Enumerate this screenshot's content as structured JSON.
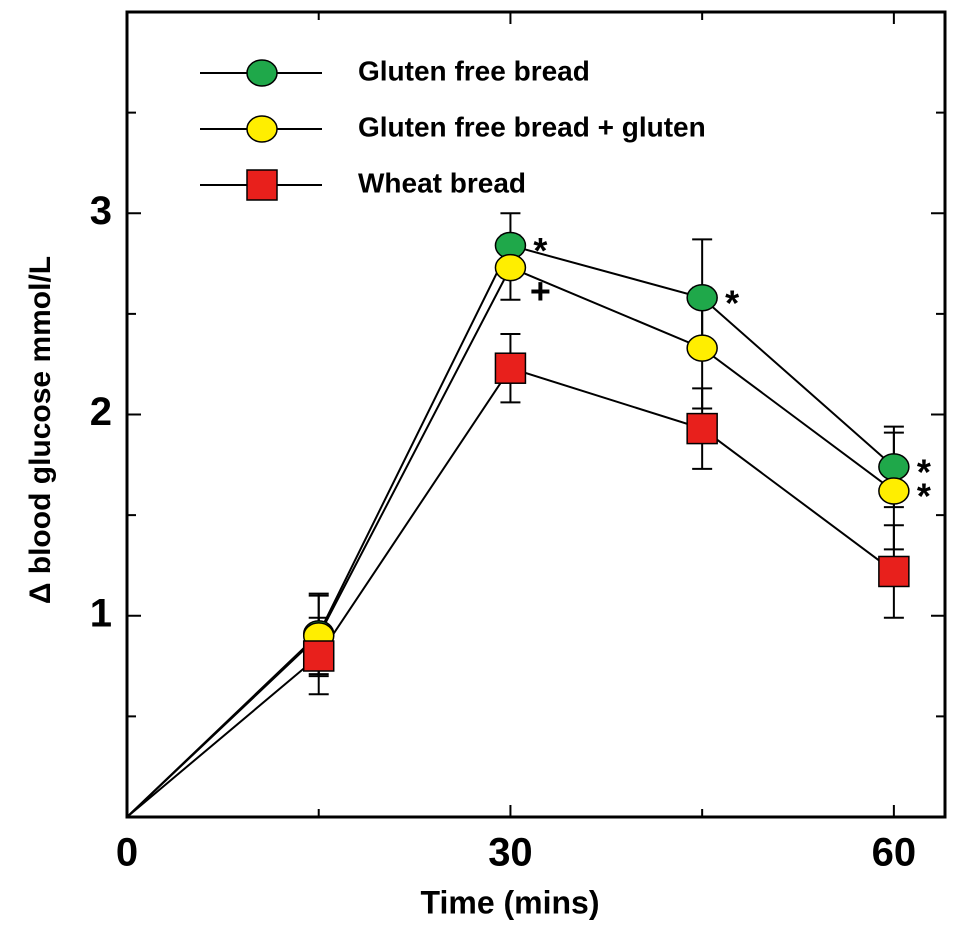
{
  "chart_data": {
    "type": "line",
    "x_label": "Time (mins)",
    "y_label": "Δ blood glucose mmol/L",
    "x": [
      0,
      15,
      30,
      45,
      60
    ],
    "series": [
      {
        "name": "Gluten free bread",
        "color": "#1fa84a",
        "marker": "circle",
        "values": [
          0,
          0.91,
          2.84,
          2.58,
          1.74
        ],
        "errors": [
          null,
          0.2,
          0.16,
          0.29,
          0.2
        ]
      },
      {
        "name": "Gluten free bread + gluten",
        "color": "#ffee00",
        "marker": "circle",
        "values": [
          0,
          0.9,
          2.73,
          2.33,
          1.62
        ],
        "errors": [
          null,
          0.2,
          0.16,
          0.3,
          0.29
        ]
      },
      {
        "name": "Wheat bread",
        "color": "#e8201c",
        "marker": "square",
        "values": [
          0,
          0.8,
          2.23,
          1.93,
          1.22
        ],
        "errors": [
          null,
          0.19,
          0.17,
          0.2,
          0.23
        ]
      }
    ],
    "annotations": [
      {
        "text": "*",
        "x": 30,
        "y": 2.84
      },
      {
        "text": "+",
        "x": 30,
        "y": 2.6
      },
      {
        "text": "*",
        "x": 45,
        "y": 2.58
      },
      {
        "text": "*",
        "x": 60,
        "y": 1.74
      },
      {
        "text": "*",
        "x": 60,
        "y": 1.62
      }
    ],
    "xlim": [
      0,
      64
    ],
    "xticks": [
      0,
      30,
      60
    ],
    "xminor": [
      15,
      45
    ],
    "ylim": [
      0,
      4
    ],
    "yticks": [
      1,
      2,
      3
    ],
    "yminor": [
      0.5,
      1.5,
      2.5,
      3.5
    ],
    "legend": "top-left"
  }
}
